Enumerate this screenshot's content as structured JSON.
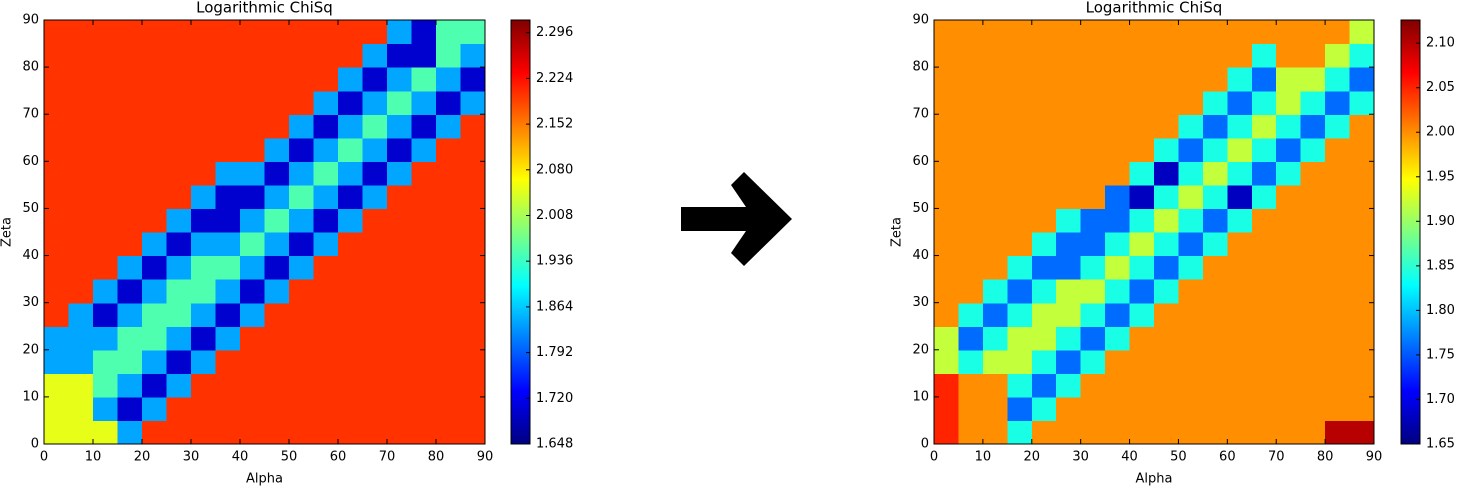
{
  "chart_data": [
    {
      "type": "heatmap",
      "title": "Logarithmic ChiSq",
      "xlabel": "Alpha",
      "ylabel": "Zeta",
      "xlim": [
        0,
        90
      ],
      "ylim": [
        0,
        90
      ],
      "xticks": [
        0,
        10,
        20,
        30,
        40,
        50,
        60,
        70,
        80,
        90
      ],
      "yticks": [
        0,
        10,
        20,
        30,
        40,
        50,
        60,
        70,
        80,
        90
      ],
      "x_bins": [
        0,
        5,
        10,
        15,
        20,
        25,
        30,
        35,
        40,
        45,
        50,
        55,
        60,
        65,
        70,
        75,
        80,
        85,
        90
      ],
      "y_bins": [
        0,
        5,
        10,
        15,
        20,
        25,
        30,
        35,
        40,
        45,
        50,
        55,
        60,
        65,
        70,
        75,
        80,
        85,
        90
      ],
      "colormap": "jet",
      "clim": [
        1.648,
        2.316
      ],
      "cticks": [
        1.648,
        {
          "value": 1.72,
          "label": "1.720"
        },
        1.792,
        1.864,
        1.936,
        2.008,
        {
          "value": 2.08,
          "label": "2.080"
        },
        2.152,
        2.224,
        2.296
      ],
      "z": [
        [
          2.05,
          2.05,
          2.05,
          1.84,
          2.2,
          2.2,
          2.2,
          2.2,
          2.2,
          2.2,
          2.2,
          2.2,
          2.2,
          2.2,
          2.2,
          2.2,
          2.2,
          2.2
        ],
        [
          2.05,
          2.05,
          1.84,
          1.7,
          1.84,
          2.2,
          2.2,
          2.2,
          2.2,
          2.2,
          2.2,
          2.2,
          2.2,
          2.2,
          2.2,
          2.2,
          2.2,
          2.2
        ],
        [
          2.05,
          2.05,
          1.95,
          1.84,
          1.7,
          1.84,
          2.2,
          2.2,
          2.2,
          2.2,
          2.2,
          2.2,
          2.2,
          2.2,
          2.2,
          2.2,
          2.2,
          2.2
        ],
        [
          1.84,
          1.84,
          1.95,
          1.95,
          1.84,
          1.7,
          1.84,
          2.2,
          2.2,
          2.2,
          2.2,
          2.2,
          2.2,
          2.2,
          2.2,
          2.2,
          2.2,
          2.2
        ],
        [
          1.84,
          1.84,
          1.84,
          1.95,
          1.95,
          1.84,
          1.7,
          1.84,
          2.2,
          2.2,
          2.2,
          2.2,
          2.2,
          2.2,
          2.2,
          2.2,
          2.2,
          2.2
        ],
        [
          2.2,
          1.84,
          1.7,
          1.84,
          1.95,
          1.95,
          1.84,
          1.7,
          1.84,
          2.2,
          2.2,
          2.2,
          2.2,
          2.2,
          2.2,
          2.2,
          2.2,
          2.2
        ],
        [
          2.2,
          2.2,
          1.84,
          1.7,
          1.84,
          1.95,
          1.95,
          1.84,
          1.7,
          1.84,
          2.2,
          2.2,
          2.2,
          2.2,
          2.2,
          2.2,
          2.2,
          2.2
        ],
        [
          2.2,
          2.2,
          2.2,
          1.84,
          1.7,
          1.84,
          1.95,
          1.95,
          1.84,
          1.7,
          1.84,
          2.2,
          2.2,
          2.2,
          2.2,
          2.2,
          2.2,
          2.2
        ],
        [
          2.2,
          2.2,
          2.2,
          2.2,
          1.84,
          1.7,
          1.84,
          1.84,
          1.95,
          1.84,
          1.7,
          1.84,
          2.2,
          2.2,
          2.2,
          2.2,
          2.2,
          2.2
        ],
        [
          2.2,
          2.2,
          2.2,
          2.2,
          2.2,
          1.84,
          1.7,
          1.7,
          1.84,
          1.95,
          1.84,
          1.7,
          1.84,
          2.2,
          2.2,
          2.2,
          2.2,
          2.2
        ],
        [
          2.2,
          2.2,
          2.2,
          2.2,
          2.2,
          2.2,
          1.84,
          1.7,
          1.7,
          1.84,
          1.95,
          1.84,
          1.7,
          1.84,
          2.2,
          2.2,
          2.2,
          2.2
        ],
        [
          2.2,
          2.2,
          2.2,
          2.2,
          2.2,
          2.2,
          2.2,
          1.84,
          1.84,
          1.7,
          1.84,
          1.95,
          1.84,
          1.7,
          1.84,
          2.2,
          2.2,
          2.2
        ],
        [
          2.2,
          2.2,
          2.2,
          2.2,
          2.2,
          2.2,
          2.2,
          2.2,
          2.2,
          1.84,
          1.7,
          1.84,
          1.95,
          1.84,
          1.7,
          1.84,
          2.2,
          2.2
        ],
        [
          2.2,
          2.2,
          2.2,
          2.2,
          2.2,
          2.2,
          2.2,
          2.2,
          2.2,
          2.2,
          1.84,
          1.7,
          1.84,
          1.95,
          1.84,
          1.7,
          1.84,
          2.2
        ],
        [
          2.2,
          2.2,
          2.2,
          2.2,
          2.2,
          2.2,
          2.2,
          2.2,
          2.2,
          2.2,
          2.2,
          1.84,
          1.7,
          1.84,
          1.95,
          1.84,
          1.7,
          1.84
        ],
        [
          2.2,
          2.2,
          2.2,
          2.2,
          2.2,
          2.2,
          2.2,
          2.2,
          2.2,
          2.2,
          2.2,
          2.2,
          1.84,
          1.7,
          1.84,
          1.95,
          1.84,
          1.7
        ],
        [
          2.2,
          2.2,
          2.2,
          2.2,
          2.2,
          2.2,
          2.2,
          2.2,
          2.2,
          2.2,
          2.2,
          2.2,
          2.2,
          1.84,
          1.7,
          1.7,
          1.95,
          1.84
        ],
        [
          2.2,
          2.2,
          2.2,
          2.2,
          2.2,
          2.2,
          2.2,
          2.2,
          2.2,
          2.2,
          2.2,
          2.2,
          2.2,
          2.2,
          1.84,
          1.7,
          1.95,
          1.95
        ]
      ]
    },
    {
      "type": "heatmap",
      "title": "Logarithmic ChiSq",
      "xlabel": "Alpha",
      "ylabel": "Zeta",
      "xlim": [
        0,
        90
      ],
      "ylim": [
        0,
        90
      ],
      "xticks": [
        0,
        10,
        20,
        30,
        40,
        50,
        60,
        70,
        80,
        90
      ],
      "yticks": [
        0,
        10,
        20,
        30,
        40,
        50,
        60,
        70,
        80,
        90
      ],
      "x_bins": [
        0,
        5,
        10,
        15,
        20,
        25,
        30,
        35,
        40,
        45,
        50,
        55,
        60,
        65,
        70,
        75,
        80,
        85,
        90
      ],
      "y_bins": [
        0,
        5,
        10,
        15,
        20,
        25,
        30,
        35,
        40,
        45,
        50,
        55,
        60,
        65,
        70,
        75,
        80,
        85,
        90
      ],
      "colormap": "jet",
      "clim": [
        1.65,
        2.126
      ],
      "cticks": [
        1.65,
        {
          "value": 1.7,
          "label": "1.70"
        },
        1.75,
        {
          "value": 1.8,
          "label": "1.80"
        },
        1.85,
        {
          "value": 1.9,
          "label": "1.90"
        },
        1.95,
        {
          "value": 2.0,
          "label": "2.00"
        },
        2.05,
        {
          "value": 2.1,
          "label": "2.10"
        }
      ],
      "z": [
        [
          2.05,
          2,
          2,
          1.84,
          2,
          2,
          2,
          2,
          2,
          2,
          2,
          2,
          2,
          2,
          2,
          2,
          2.1,
          2.1
        ],
        [
          2.05,
          2,
          2,
          1.76,
          1.84,
          2,
          2,
          2,
          2,
          2,
          2,
          2,
          2,
          2,
          2,
          2,
          2,
          2
        ],
        [
          2.05,
          2,
          2,
          1.84,
          1.76,
          1.84,
          2,
          2,
          2,
          2,
          2,
          2,
          2,
          2,
          2,
          2,
          2,
          2
        ],
        [
          1.92,
          1.84,
          1.92,
          1.92,
          1.84,
          1.76,
          1.84,
          2,
          2,
          2,
          2,
          2,
          2,
          2,
          2,
          2,
          2,
          2
        ],
        [
          1.92,
          1.76,
          1.84,
          1.92,
          1.92,
          1.84,
          1.76,
          1.84,
          2,
          2,
          2,
          2,
          2,
          2,
          2,
          2,
          2,
          2
        ],
        [
          2,
          1.84,
          1.76,
          1.84,
          1.92,
          1.92,
          1.84,
          1.76,
          1.84,
          2,
          2,
          2,
          2,
          2,
          2,
          2,
          2,
          2
        ],
        [
          2,
          2,
          1.84,
          1.76,
          1.84,
          1.92,
          1.92,
          1.84,
          1.76,
          1.84,
          2,
          2,
          2,
          2,
          2,
          2,
          2,
          2
        ],
        [
          2,
          2,
          2,
          1.84,
          1.76,
          1.76,
          1.84,
          1.92,
          1.84,
          1.76,
          1.84,
          2,
          2,
          2,
          2,
          2,
          2,
          2
        ],
        [
          2,
          2,
          2,
          2,
          1.84,
          1.76,
          1.76,
          1.84,
          1.92,
          1.84,
          1.76,
          1.84,
          2,
          2,
          2,
          2,
          2,
          2
        ],
        [
          2,
          2,
          2,
          2,
          2,
          1.84,
          1.76,
          1.76,
          1.84,
          1.92,
          1.84,
          1.76,
          1.84,
          2,
          2,
          2,
          2,
          2
        ],
        [
          2,
          2,
          2,
          2,
          2,
          2,
          2,
          1.76,
          1.68,
          1.84,
          1.92,
          1.84,
          1.68,
          1.84,
          2,
          2,
          2,
          2
        ],
        [
          2,
          2,
          2,
          2,
          2,
          2,
          2,
          2,
          1.84,
          1.68,
          1.84,
          1.92,
          1.84,
          1.76,
          1.84,
          2,
          2,
          2
        ],
        [
          2,
          2,
          2,
          2,
          2,
          2,
          2,
          2,
          2,
          1.84,
          1.76,
          1.84,
          1.92,
          1.84,
          1.76,
          1.84,
          2,
          2
        ],
        [
          2,
          2,
          2,
          2,
          2,
          2,
          2,
          2,
          2,
          2,
          1.84,
          1.76,
          1.84,
          1.92,
          1.84,
          1.76,
          1.84,
          2
        ],
        [
          2,
          2,
          2,
          2,
          2,
          2,
          2,
          2,
          2,
          2,
          2,
          1.84,
          1.76,
          1.84,
          1.92,
          1.84,
          1.76,
          1.84
        ],
        [
          2,
          2,
          2,
          2,
          2,
          2,
          2,
          2,
          2,
          2,
          2,
          2,
          1.84,
          1.76,
          1.92,
          1.92,
          1.84,
          1.76
        ],
        [
          2,
          2,
          2,
          2,
          2,
          2,
          2,
          2,
          2,
          2,
          2,
          2,
          2,
          1.84,
          2,
          2,
          1.92,
          1.84
        ],
        [
          2,
          2,
          2,
          2,
          2,
          2,
          2,
          2,
          2,
          2,
          2,
          2,
          2,
          2,
          2,
          2,
          2,
          1.92
        ]
      ]
    }
  ]
}
